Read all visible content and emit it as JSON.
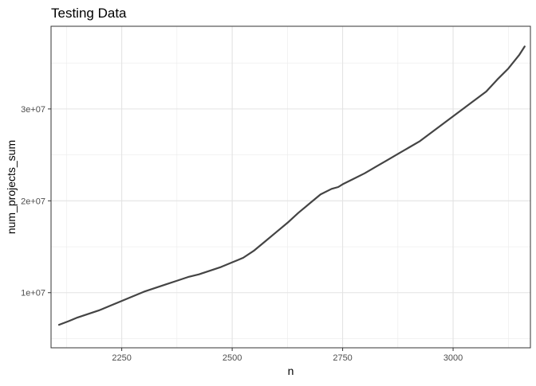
{
  "chart_data": {
    "type": "line",
    "title": "Testing Data",
    "xlabel": "n",
    "ylabel": "num_projects_sum",
    "xlim": [
      2090,
      3175
    ],
    "ylim": [
      4000000,
      39000000
    ],
    "x_ticks": [
      2250,
      2500,
      2750,
      3000
    ],
    "x_tick_labels": [
      "2250",
      "2500",
      "2750",
      "3000"
    ],
    "y_ticks": [
      10000000,
      20000000,
      30000000
    ],
    "y_tick_labels": [
      "1e+07",
      "2e+07",
      "3e+07"
    ],
    "grid": true,
    "legend": "none",
    "line_color": "#444444",
    "series": [
      {
        "x": [
          2108,
          2130,
          2150,
          2175,
          2200,
          2225,
          2250,
          2275,
          2300,
          2325,
          2350,
          2375,
          2400,
          2425,
          2450,
          2475,
          2500,
          2510,
          2525,
          2550,
          2575,
          2600,
          2625,
          2650,
          2675,
          2700,
          2725,
          2740,
          2750,
          2775,
          2800,
          2825,
          2850,
          2875,
          2900,
          2925,
          2950,
          2975,
          3000,
          3025,
          3050,
          3075,
          3100,
          3125,
          3150,
          3162
        ],
        "y": [
          6500000,
          6900000,
          7300000,
          7700000,
          8100000,
          8600000,
          9100000,
          9600000,
          10100000,
          10500000,
          10900000,
          11300000,
          11700000,
          12000000,
          12400000,
          12800000,
          13300000,
          13500000,
          13800000,
          14600000,
          15600000,
          16600000,
          17600000,
          18700000,
          19700000,
          20700000,
          21300000,
          21500000,
          21800000,
          22400000,
          23000000,
          23700000,
          24400000,
          25100000,
          25800000,
          26500000,
          27400000,
          28300000,
          29200000,
          30100000,
          31000000,
          31900000,
          33200000,
          34400000,
          35900000,
          36800000
        ]
      }
    ]
  }
}
